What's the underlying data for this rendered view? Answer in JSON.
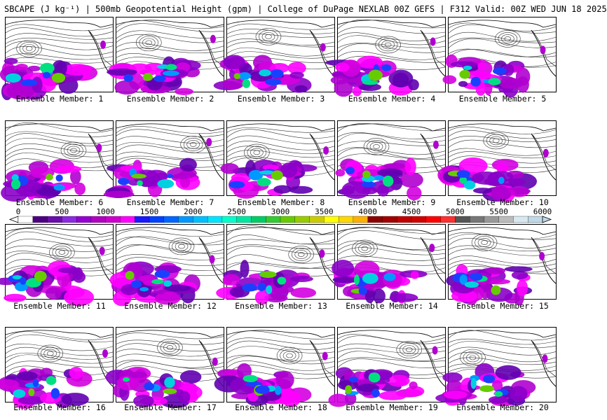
{
  "header": {
    "title": "SBCAPE (J kg⁻¹) | 500mb Geopotential Height (gpm) | College of DuPage NEXLAB 00Z GEFS | F312 Valid: 00Z WED JUN 18 2025"
  },
  "members": [
    {
      "label": "Ensemble Member: 1"
    },
    {
      "label": "Ensemble Member: 2"
    },
    {
      "label": "Ensemble Member: 3"
    },
    {
      "label": "Ensemble Member: 4"
    },
    {
      "label": "Ensemble Member: 5"
    },
    {
      "label": "Ensemble Member: 6"
    },
    {
      "label": "Ensemble Member: 7"
    },
    {
      "label": "Ensemble Member: 8"
    },
    {
      "label": "Ensemble Member: 9"
    },
    {
      "label": "Ensemble Member: 10"
    },
    {
      "label": "Ensemble Member: 11"
    },
    {
      "label": "Ensemble Member: 12"
    },
    {
      "label": "Ensemble Member: 13"
    },
    {
      "label": "Ensemble Member: 14"
    },
    {
      "label": "Ensemble Member: 15"
    },
    {
      "label": "Ensemble Member: 16"
    },
    {
      "label": "Ensemble Member: 17"
    },
    {
      "label": "Ensemble Member: 18"
    },
    {
      "label": "Ensemble Member: 19"
    },
    {
      "label": "Ensemble Member: 20"
    }
  ],
  "colorbar": {
    "ticks": [
      "0",
      "500",
      "1000",
      "1500",
      "2000",
      "2500",
      "3000",
      "3500",
      "4000",
      "4500",
      "5000",
      "5500",
      "6000"
    ],
    "colors": [
      "#ffffff",
      "#4b0082",
      "#6a0dad",
      "#8a2be2",
      "#9400d3",
      "#b000c0",
      "#cc00cc",
      "#ff00ff",
      "#1a1aff",
      "#0040ff",
      "#0066ff",
      "#0099ff",
      "#00bfff",
      "#00e5ff",
      "#00ffcc",
      "#00e6a0",
      "#00cc66",
      "#33cc33",
      "#66cc00",
      "#99cc00",
      "#cccc00",
      "#ffff00",
      "#ffd700",
      "#ffb000",
      "#8b0000",
      "#a00000",
      "#c00000",
      "#d00000",
      "#ff0000",
      "#ff3030",
      "#555555",
      "#777777",
      "#999999",
      "#bbbbbb",
      "#d8e8f0",
      "#c0d8e8"
    ]
  }
}
